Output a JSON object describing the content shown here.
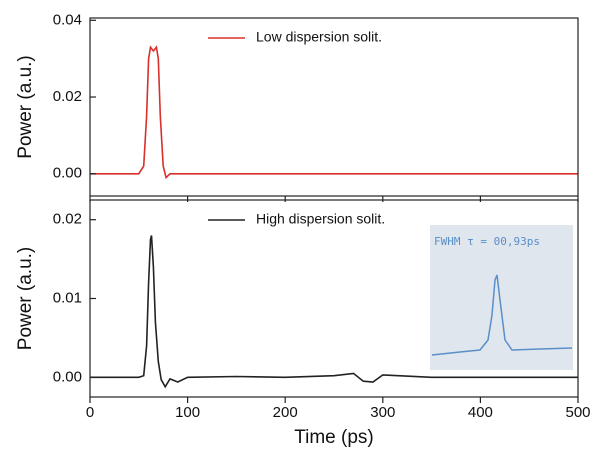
{
  "chart_data": [
    {
      "type": "line",
      "x": [
        0,
        50,
        55,
        58,
        60,
        62,
        65,
        68,
        70,
        72,
        75,
        78,
        82,
        90,
        150,
        250,
        350,
        450,
        500
      ],
      "series": [
        {
          "name": "Low dispersion solit.",
          "color": "#d9302a",
          "values": [
            0,
            0,
            0.002,
            0.015,
            0.03,
            0.033,
            0.032,
            0.033,
            0.03,
            0.015,
            0.002,
            -0.001,
            0,
            0,
            0,
            0,
            0,
            0,
            0
          ]
        }
      ],
      "ylabel": "Power (a.u.)",
      "xlim": [
        0,
        500
      ],
      "xticks": [
        0,
        100,
        200,
        300,
        400,
        500
      ],
      "ylim": [
        -0.0058,
        0.0406
      ],
      "yticks": [
        {
          "value": 0,
          "label": "0.00"
        },
        {
          "value": 0.02,
          "label": "0.02"
        },
        {
          "value": 0.04,
          "label": "0.04"
        }
      ]
    },
    {
      "type": "line",
      "x": [
        0,
        50,
        55,
        58,
        60,
        62,
        63,
        65,
        67,
        70,
        73,
        77,
        82,
        90,
        100,
        150,
        200,
        250,
        270,
        280,
        290,
        300,
        350,
        400,
        450,
        500
      ],
      "series": [
        {
          "name": "High dispersion solit.",
          "color": "#222222",
          "values": [
            0,
            0,
            0.0002,
            0.004,
            0.012,
            0.0175,
            0.018,
            0.014,
            0.007,
            0.002,
            -0.0003,
            -0.0012,
            -0.0002,
            -0.0006,
            0,
            0.0001,
            0,
            0.0002,
            0.0005,
            -0.0005,
            -0.0006,
            0.0003,
            0,
            0,
            0,
            0
          ]
        }
      ],
      "ylabel": "Power (a.u.)",
      "xlabel": "Time (ps)",
      "xlim": [
        0,
        500
      ],
      "xticks": [
        0,
        100,
        200,
        300,
        400,
        500
      ],
      "ylim": [
        -0.0025,
        0.0225
      ],
      "yticks": [
        {
          "value": 0,
          "label": "0.00"
        },
        {
          "value": 0.01,
          "label": "0.01"
        },
        {
          "value": 0.02,
          "label": "0.02"
        }
      ],
      "annotations": [
        "FWHM τ = 00,93ps"
      ]
    }
  ]
}
